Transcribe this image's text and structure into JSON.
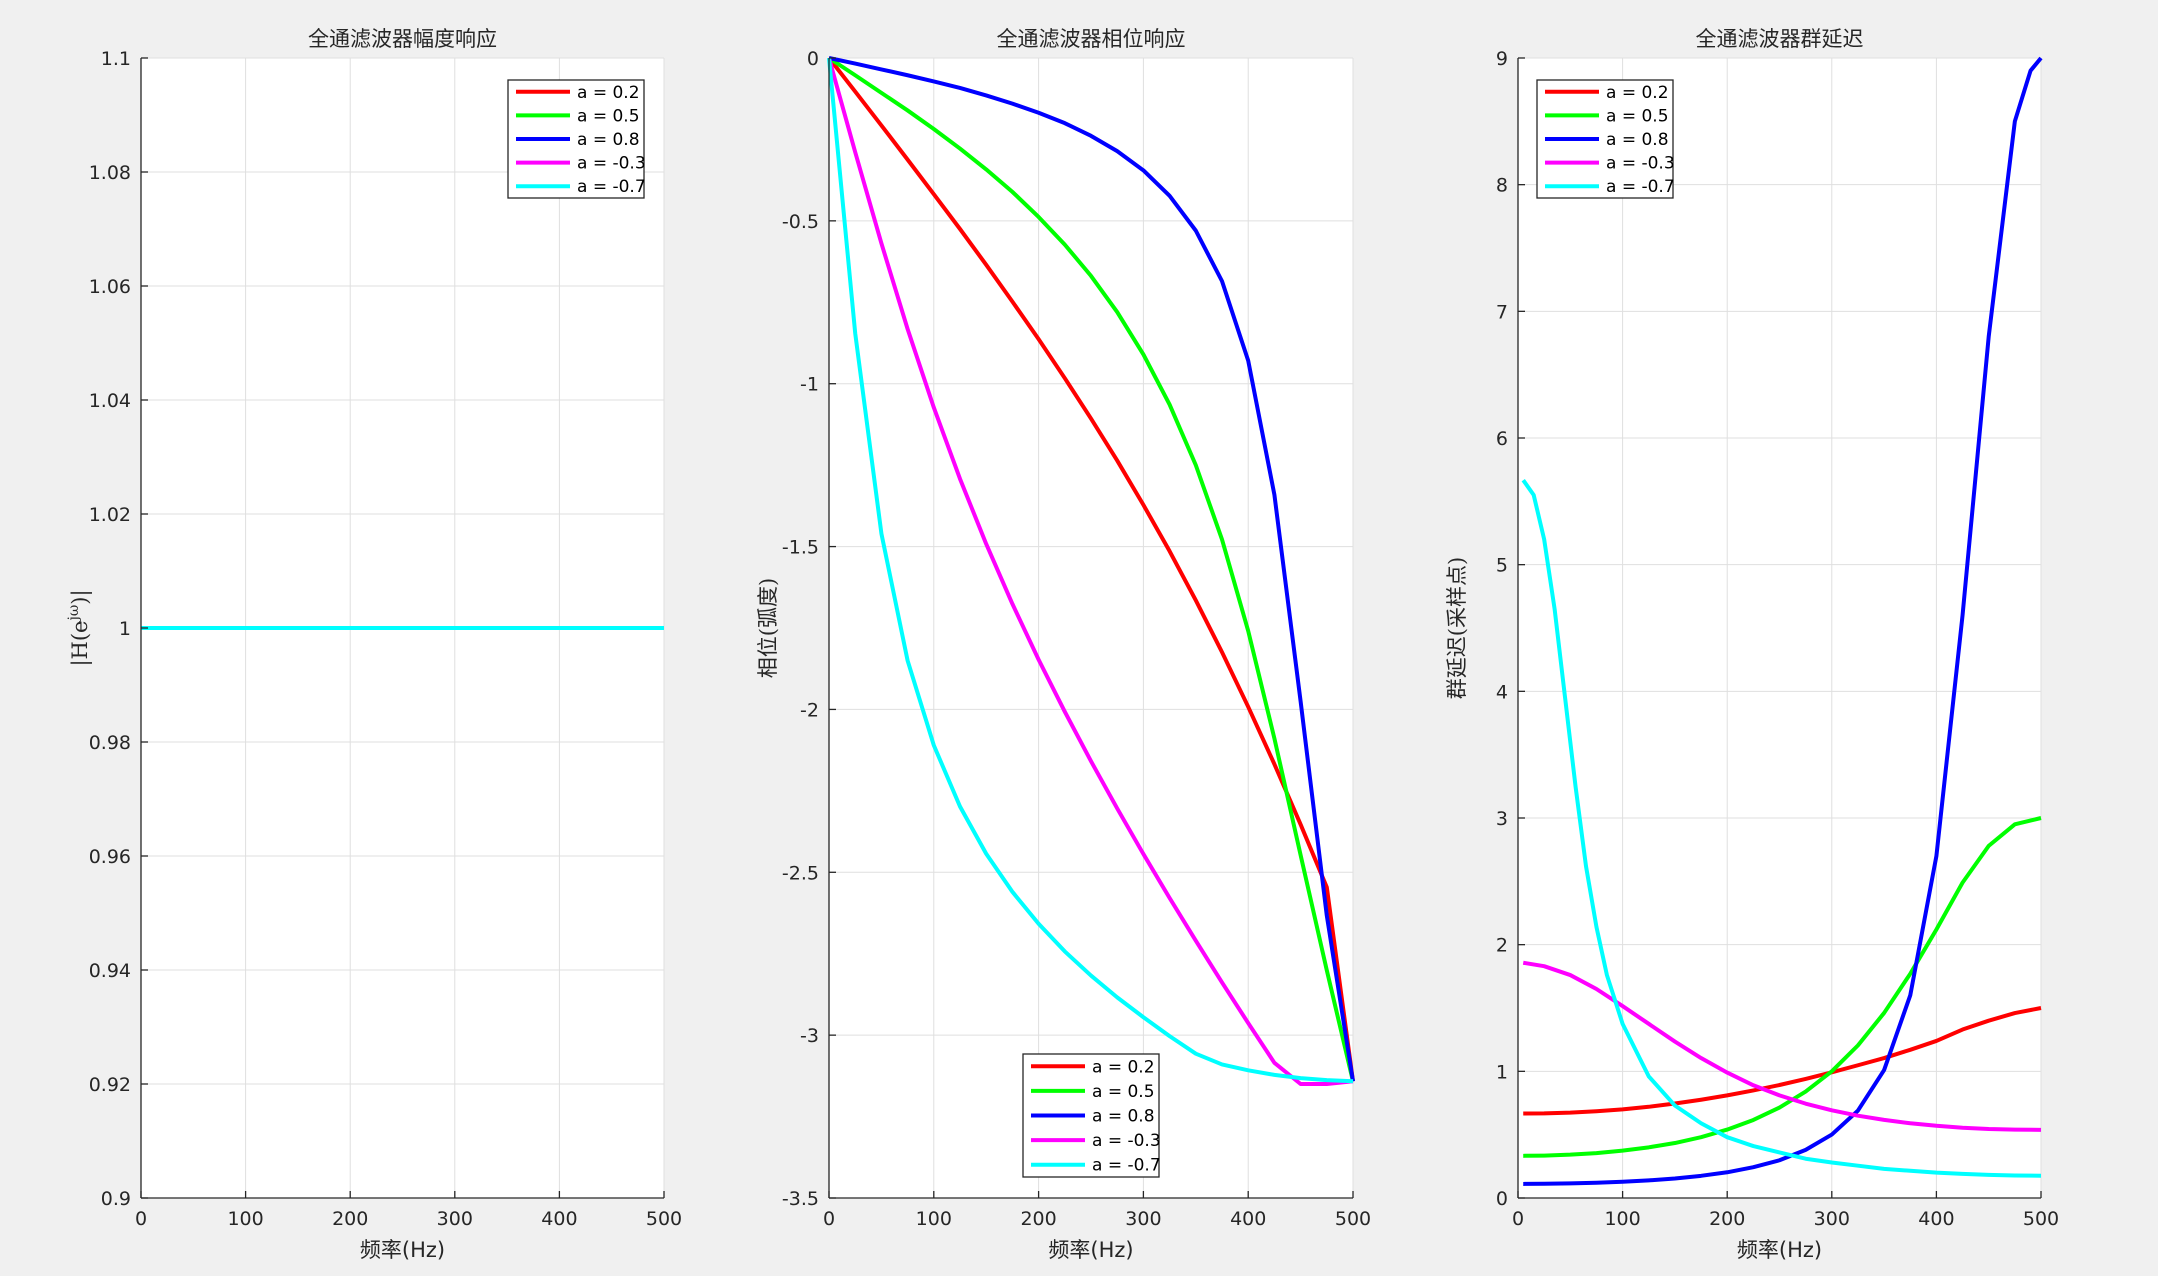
{
  "chart_data": [
    {
      "type": "line",
      "title": "全通滤波器幅度响应",
      "xlabel": "频率(Hz)",
      "ylabel": "|H(e^{jω})|",
      "xlim": [
        0,
        500
      ],
      "ylim": [
        0.9,
        1.1
      ],
      "xticks": [
        0,
        100,
        200,
        300,
        400,
        500
      ],
      "yticks": [
        0.9,
        0.92,
        0.94,
        0.96,
        0.98,
        1,
        1.02,
        1.04,
        1.06,
        1.08,
        1.1
      ],
      "ytick_labels": [
        "0.9",
        "0.92",
        "0.94",
        "0.96",
        "0.98",
        "1",
        "1.02",
        "1.04",
        "1.06",
        "1.08",
        "1.1"
      ],
      "grid": true,
      "legend_position": "top-right",
      "series": [
        {
          "name": "a = 0.2",
          "color": "#ff0000",
          "x": [
            0,
            500
          ],
          "y": [
            1,
            1
          ]
        },
        {
          "name": "a = 0.5",
          "color": "#00ff00",
          "x": [
            0,
            500
          ],
          "y": [
            1,
            1
          ]
        },
        {
          "name": "a = 0.8",
          "color": "#0000ff",
          "x": [
            0,
            500
          ],
          "y": [
            1,
            1
          ]
        },
        {
          "name": "a = -0.3",
          "color": "#ff00ff",
          "x": [
            0,
            500
          ],
          "y": [
            1,
            1
          ]
        },
        {
          "name": "a = -0.7",
          "color": "#00ffff",
          "x": [
            0,
            500
          ],
          "y": [
            1,
            1
          ]
        }
      ]
    },
    {
      "type": "line",
      "title": "全通滤波器相位响应",
      "xlabel": "频率(Hz)",
      "ylabel": "相位(弧度)",
      "xlim": [
        0,
        500
      ],
      "ylim": [
        -3.5,
        0
      ],
      "xticks": [
        0,
        100,
        200,
        300,
        400,
        500
      ],
      "yticks": [
        -3.5,
        -3,
        -2.5,
        -2,
        -1.5,
        -1,
        -0.5,
        0
      ],
      "ytick_labels": [
        "-3.5",
        "-3",
        "-2.5",
        "-2",
        "-1.5",
        "-1",
        "-0.5",
        "0"
      ],
      "grid": true,
      "legend_position": "bottom",
      "series": [
        {
          "name": "a = 0.2",
          "color": "#ff0000",
          "x": [
            0,
            25,
            50,
            75,
            100,
            125,
            150,
            175,
            200,
            225,
            250,
            275,
            300,
            325,
            350,
            375,
            400,
            425,
            450,
            475,
            500
          ],
          "y": [
            0,
            -0.103,
            -0.207,
            -0.312,
            -0.418,
            -0.525,
            -0.635,
            -0.748,
            -0.863,
            -0.983,
            -1.107,
            -1.236,
            -1.372,
            -1.514,
            -1.665,
            -1.824,
            -1.992,
            -2.168,
            -2.353,
            -2.546,
            -3.1416
          ]
        },
        {
          "name": "a = 0.5",
          "color": "#00ff00",
          "x": [
            0,
            25,
            50,
            75,
            100,
            125,
            150,
            175,
            200,
            225,
            250,
            275,
            300,
            325,
            350,
            375,
            400,
            425,
            450,
            475,
            500
          ],
          "y": [
            0,
            -0.053,
            -0.107,
            -0.161,
            -0.218,
            -0.278,
            -0.342,
            -0.411,
            -0.488,
            -0.573,
            -0.669,
            -0.78,
            -0.91,
            -1.064,
            -1.25,
            -1.478,
            -1.759,
            -2.089,
            -2.447,
            -2.801,
            -3.1416
          ]
        },
        {
          "name": "a = 0.8",
          "color": "#0000ff",
          "x": [
            0,
            25,
            50,
            75,
            100,
            125,
            150,
            175,
            200,
            225,
            250,
            275,
            300,
            325,
            350,
            375,
            400,
            425,
            450,
            475,
            500
          ],
          "y": [
            0,
            -0.017,
            -0.035,
            -0.053,
            -0.072,
            -0.092,
            -0.115,
            -0.14,
            -0.168,
            -0.2,
            -0.239,
            -0.286,
            -0.345,
            -0.423,
            -0.53,
            -0.685,
            -0.929,
            -1.341,
            -1.975,
            -2.633,
            -3.1416
          ]
        },
        {
          "name": "a = -0.3",
          "color": "#ff00ff",
          "x": [
            0,
            25,
            50,
            75,
            100,
            125,
            150,
            175,
            200,
            225,
            250,
            275,
            300,
            325,
            350,
            375,
            400,
            425,
            450,
            475,
            500
          ],
          "y": [
            0,
            -0.289,
            -0.569,
            -0.832,
            -1.073,
            -1.292,
            -1.492,
            -1.676,
            -1.847,
            -2.007,
            -2.159,
            -2.304,
            -2.444,
            -2.579,
            -2.71,
            -2.838,
            -2.963,
            -3.085,
            -3.15,
            -3.15,
            -3.1416
          ]
        },
        {
          "name": "a = -0.7",
          "color": "#00ffff",
          "x": [
            0,
            25,
            50,
            75,
            100,
            125,
            150,
            175,
            200,
            225,
            250,
            275,
            300,
            325,
            350,
            375,
            400,
            425,
            450,
            475,
            500
          ],
          "y": [
            0,
            -0.845,
            -1.46,
            -1.85,
            -2.11,
            -2.298,
            -2.443,
            -2.56,
            -2.658,
            -2.743,
            -2.817,
            -2.884,
            -2.945,
            -3.003,
            -3.057,
            -3.09,
            -3.108,
            -3.122,
            -3.132,
            -3.138,
            -3.1416
          ]
        }
      ]
    },
    {
      "type": "line",
      "title": "全通滤波器群延迟",
      "xlabel": "频率(Hz)",
      "ylabel": "群延迟(采样点)",
      "xlim": [
        0,
        500
      ],
      "ylim": [
        0,
        9
      ],
      "xticks": [
        0,
        100,
        200,
        300,
        400,
        500
      ],
      "yticks": [
        0,
        1,
        2,
        3,
        4,
        5,
        6,
        7,
        8,
        9
      ],
      "ytick_labels": [
        "0",
        "1",
        "2",
        "3",
        "4",
        "5",
        "6",
        "7",
        "8",
        "9"
      ],
      "grid": true,
      "legend_position": "top-left",
      "series": [
        {
          "name": "a = 0.2",
          "color": "#ff0000",
          "x": [
            5,
            25,
            50,
            75,
            100,
            125,
            150,
            175,
            200,
            225,
            250,
            275,
            300,
            325,
            350,
            375,
            400,
            425,
            450,
            475,
            500
          ],
          "y": [
            0.667,
            0.668,
            0.674,
            0.685,
            0.7,
            0.72,
            0.746,
            0.776,
            0.81,
            0.849,
            0.892,
            0.94,
            0.992,
            1.048,
            1.105,
            1.17,
            1.24,
            1.33,
            1.4,
            1.46,
            1.5
          ]
        },
        {
          "name": "a = 0.5",
          "color": "#00ff00",
          "x": [
            5,
            25,
            50,
            75,
            100,
            125,
            150,
            175,
            200,
            225,
            250,
            275,
            300,
            325,
            350,
            375,
            400,
            425,
            450,
            475,
            500
          ],
          "y": [
            0.333,
            0.335,
            0.342,
            0.354,
            0.374,
            0.4,
            0.434,
            0.48,
            0.54,
            0.616,
            0.714,
            0.84,
            1.0,
            1.205,
            1.461,
            1.77,
            2.12,
            2.49,
            2.78,
            2.95,
            3.0
          ]
        },
        {
          "name": "a = 0.8",
          "color": "#0000ff",
          "x": [
            5,
            25,
            50,
            75,
            100,
            125,
            150,
            175,
            200,
            225,
            250,
            275,
            300,
            325,
            350,
            375,
            400,
            425,
            450,
            475,
            490,
            500
          ],
          "y": [
            0.111,
            0.112,
            0.115,
            0.12,
            0.128,
            0.139,
            0.154,
            0.175,
            0.203,
            0.243,
            0.298,
            0.38,
            0.501,
            0.69,
            1.01,
            1.6,
            2.7,
            4.6,
            6.8,
            8.5,
            8.9,
            9.0
          ]
        },
        {
          "name": "a = -0.3",
          "color": "#ff00ff",
          "x": [
            5,
            25,
            50,
            75,
            100,
            125,
            150,
            175,
            200,
            225,
            250,
            275,
            300,
            325,
            350,
            375,
            400,
            425,
            450,
            475,
            500
          ],
          "y": [
            1.857,
            1.83,
            1.76,
            1.65,
            1.515,
            1.375,
            1.235,
            1.105,
            0.99,
            0.89,
            0.81,
            0.745,
            0.692,
            0.65,
            0.617,
            0.59,
            0.57,
            0.555,
            0.545,
            0.54,
            0.538
          ]
        },
        {
          "name": "a = -0.7",
          "color": "#00ffff",
          "x": [
            5,
            15,
            25,
            35,
            45,
            55,
            65,
            75,
            85,
            100,
            125,
            150,
            175,
            200,
            225,
            250,
            275,
            300,
            325,
            350,
            375,
            400,
            425,
            450,
            475,
            500
          ],
          "y": [
            5.667,
            5.55,
            5.2,
            4.65,
            3.95,
            3.25,
            2.62,
            2.14,
            1.76,
            1.375,
            0.96,
            0.73,
            0.59,
            0.48,
            0.41,
            0.36,
            0.31,
            0.28,
            0.255,
            0.23,
            0.215,
            0.2,
            0.19,
            0.183,
            0.178,
            0.176
          ]
        }
      ]
    }
  ]
}
